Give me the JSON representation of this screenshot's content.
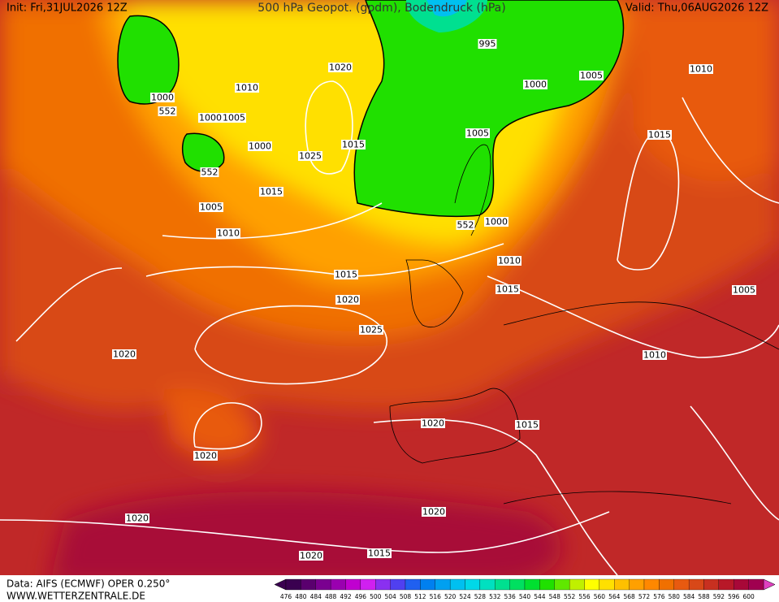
{
  "header": {
    "init": "Init: Fri,31JUL2026 12Z",
    "title": "500 hPa Geopot. (gpdm), Bodendruck (hPa)",
    "valid": "Valid: Thu,06AUG2026 12Z"
  },
  "footer": {
    "source": "Data: AIFS (ECMWF) OPER 0.250°",
    "website": "WWW.WETTERZENTRALE.DE"
  },
  "color_scale": {
    "labels": [
      476,
      480,
      484,
      488,
      492,
      496,
      500,
      504,
      508,
      512,
      516,
      520,
      524,
      528,
      532,
      536,
      540,
      544,
      548,
      552,
      556,
      560,
      564,
      568,
      572,
      576,
      580,
      584,
      588,
      592,
      596,
      600
    ],
    "colors": [
      "#3a0050",
      "#5a006e",
      "#7a0090",
      "#9a00b0",
      "#c000d0",
      "#d020f0",
      "#8a30f0",
      "#5040f0",
      "#2060f0",
      "#0080f0",
      "#00a0f0",
      "#00c0f0",
      "#00d8e8",
      "#00e0c0",
      "#00e090",
      "#00e060",
      "#00e030",
      "#20e000",
      "#60e800",
      "#c0f000",
      "#ffff00",
      "#ffe000",
      "#ffc000",
      "#ffa000",
      "#ff8800",
      "#f07000",
      "#e85a10",
      "#d84818",
      "#c83020",
      "#b81828",
      "#a80838",
      "#a00050"
    ]
  },
  "isobar_labels": [
    "995",
    "1000",
    "1005",
    "1010",
    "1020",
    "1010",
    "1000",
    "552",
    "1000",
    "1005",
    "1000",
    "1025",
    "1015",
    "1005",
    "1015",
    "552",
    "1015",
    "1005",
    "1010",
    "1000",
    "552",
    "1010",
    "1015",
    "1015",
    "1005",
    "1020",
    "1025",
    "1020",
    "1010",
    "1020",
    "1015",
    "1020",
    "1020",
    "1020",
    "1015",
    "1020"
  ]
}
